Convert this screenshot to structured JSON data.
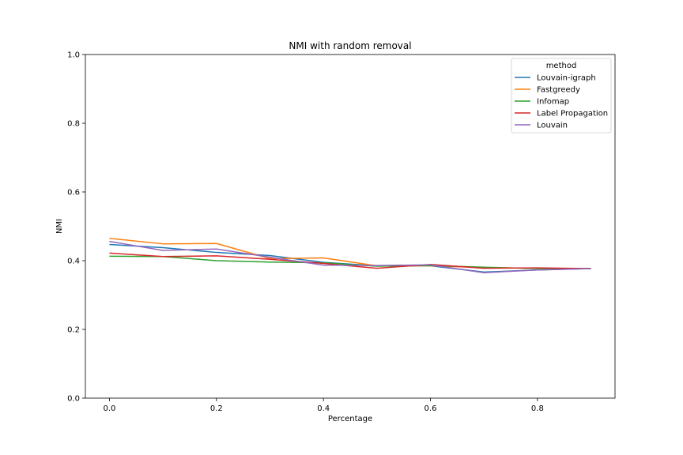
{
  "chart_data": {
    "type": "line",
    "title": "NMI with random removal",
    "xlabel": "Percentage",
    "ylabel": "NMI",
    "xlim": [
      -0.045,
      0.945
    ],
    "ylim": [
      0.0,
      1.0
    ],
    "xticks": [
      0.0,
      0.2,
      0.4,
      0.6,
      0.8
    ],
    "yticks": [
      0.0,
      0.2,
      0.4,
      0.6,
      0.8,
      1.0
    ],
    "xtick_labels": [
      "0.0",
      "0.2",
      "0.4",
      "0.6",
      "0.8"
    ],
    "ytick_labels": [
      "0.0",
      "0.2",
      "0.4",
      "0.6",
      "0.8",
      "1.0"
    ],
    "grid": false,
    "legend": {
      "title": "method",
      "placement": "top-right"
    },
    "x": [
      0.0,
      0.1,
      0.2,
      0.3,
      0.4,
      0.5,
      0.6,
      0.7,
      0.8,
      0.9
    ],
    "series": [
      {
        "name": "Louvain-igraph",
        "color": "#1f77b4",
        "values": [
          0.447,
          0.438,
          0.424,
          0.415,
          0.395,
          0.385,
          0.385,
          0.367,
          0.373,
          0.377
        ]
      },
      {
        "name": "Fastgreedy",
        "color": "#ff7f0e",
        "values": [
          0.465,
          0.449,
          0.45,
          0.406,
          0.408,
          0.385,
          0.385,
          0.38,
          0.378,
          0.377
        ]
      },
      {
        "name": "Infomap",
        "color": "#2ca02c",
        "values": [
          0.413,
          0.412,
          0.4,
          0.396,
          0.394,
          0.384,
          0.386,
          0.381,
          0.377,
          0.377
        ]
      },
      {
        "name": "Label Propagation",
        "color": "#d62728",
        "values": [
          0.422,
          0.412,
          0.414,
          0.404,
          0.392,
          0.378,
          0.389,
          0.378,
          0.379,
          0.377
        ]
      },
      {
        "name": "Louvain",
        "color": "#9467bd",
        "values": [
          0.456,
          0.43,
          0.434,
          0.41,
          0.387,
          0.386,
          0.388,
          0.365,
          0.373,
          0.377
        ]
      }
    ]
  }
}
